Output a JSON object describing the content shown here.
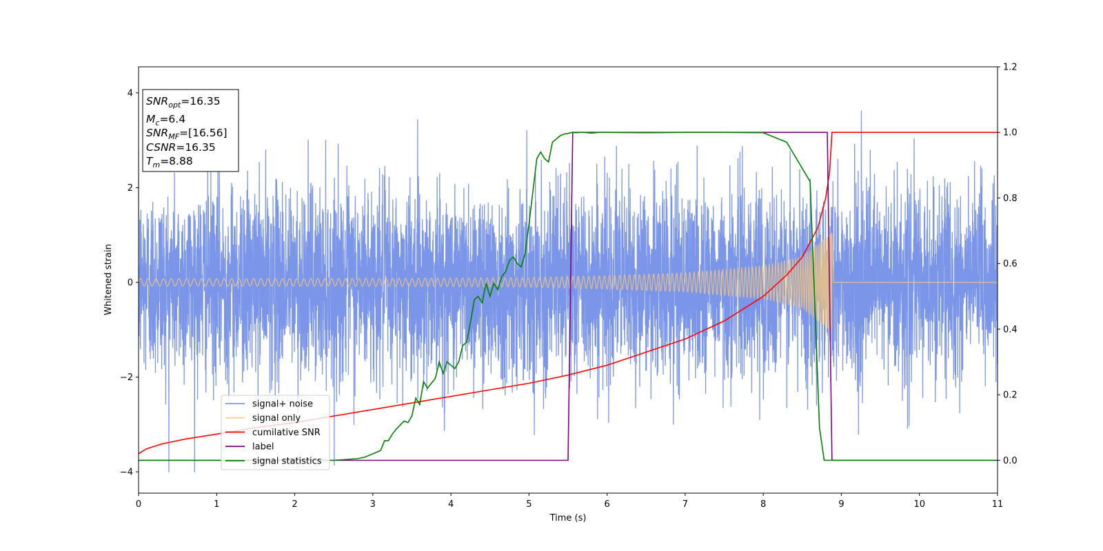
{
  "chart_data": {
    "type": "line",
    "xlabel": "Time (s)",
    "ylabel": "Whitened strain",
    "xlim": [
      0,
      11
    ],
    "ylim_left": [
      -4.45,
      4.55
    ],
    "ylim_right": [
      -0.1,
      1.2
    ],
    "x_ticks": [
      0,
      1,
      2,
      3,
      4,
      5,
      6,
      7,
      8,
      9,
      10,
      11
    ],
    "y_ticks_left": [
      -4,
      -2,
      0,
      2,
      4
    ],
    "y_tick_labels_left": [
      "−4",
      "−2",
      "0",
      "2",
      "4"
    ],
    "y_ticks_right": [
      0.0,
      0.2,
      0.4,
      0.6,
      0.8,
      1.0,
      1.2
    ],
    "y_tick_labels_right": [
      "0.0",
      "0.2",
      "0.4",
      "0.6",
      "0.8",
      "1.0",
      "1.2"
    ],
    "grid": false,
    "legend_position": "lower-left",
    "series": [
      {
        "name": "signal+ noise",
        "axis": "left",
        "color": "#5a7be3",
        "noise_sigma": 1.0,
        "max_value": 4.15,
        "min_value": -4.0
      },
      {
        "name": "signal only",
        "axis": "left",
        "color": "#f5c77a",
        "amplitude": [
          [
            0,
            0.08
          ],
          [
            2,
            0.08
          ],
          [
            4,
            0.09
          ],
          [
            5,
            0.1
          ],
          [
            6,
            0.14
          ],
          [
            7,
            0.2
          ],
          [
            8,
            0.35
          ],
          [
            8.5,
            0.55
          ],
          [
            8.8,
            0.95
          ],
          [
            8.88,
            1.05
          ],
          [
            8.9,
            0
          ]
        ],
        "merger_time": 8.88
      },
      {
        "name": "cumilative SNR",
        "axis": "right",
        "color": "#ff0000",
        "x": [
          0,
          0.1,
          0.3,
          0.6,
          1.0,
          1.5,
          2.0,
          2.5,
          3.0,
          3.5,
          4.0,
          4.5,
          5.0,
          5.5,
          6.0,
          6.5,
          7.0,
          7.5,
          8.0,
          8.3,
          8.5,
          8.7,
          8.8,
          8.85,
          8.88,
          9.0,
          11.0
        ],
        "y": [
          0.02,
          0.035,
          0.05,
          0.065,
          0.08,
          0.1,
          0.115,
          0.135,
          0.155,
          0.175,
          0.195,
          0.215,
          0.235,
          0.26,
          0.29,
          0.33,
          0.37,
          0.425,
          0.5,
          0.565,
          0.62,
          0.71,
          0.8,
          0.88,
          1.0,
          1.0,
          1.0
        ]
      },
      {
        "name": "label",
        "axis": "right",
        "color": "#800080",
        "x": [
          0,
          5.5,
          5.56,
          8.82,
          8.88,
          11
        ],
        "y": [
          0,
          0,
          1,
          1,
          0,
          0
        ]
      },
      {
        "name": "signal statistics",
        "axis": "right",
        "color": "#008000",
        "x": [
          0,
          1,
          2,
          2.5,
          2.8,
          2.9,
          3.0,
          3.1,
          3.15,
          3.2,
          3.25,
          3.3,
          3.4,
          3.45,
          3.5,
          3.55,
          3.6,
          3.65,
          3.7,
          3.75,
          3.8,
          3.85,
          3.9,
          3.95,
          4.0,
          4.05,
          4.1,
          4.15,
          4.2,
          4.25,
          4.3,
          4.35,
          4.4,
          4.45,
          4.5,
          4.55,
          4.6,
          4.65,
          4.7,
          4.75,
          4.8,
          4.85,
          4.9,
          4.95,
          5.0,
          5.05,
          5.1,
          5.15,
          5.2,
          5.25,
          5.3,
          5.35,
          5.4,
          5.45,
          5.5,
          5.55,
          5.6,
          5.65,
          5.7,
          5.8,
          5.9,
          6.0,
          6.5,
          7.0,
          7.5,
          8.0,
          8.3,
          8.6,
          8.72,
          8.78,
          8.82,
          8.85,
          8.9,
          9.0,
          11.0
        ],
        "y": [
          0,
          0,
          0,
          0,
          0.005,
          0.01,
          0.02,
          0.03,
          0.06,
          0.06,
          0.08,
          0.095,
          0.12,
          0.115,
          0.135,
          0.19,
          0.17,
          0.24,
          0.22,
          0.235,
          0.25,
          0.3,
          0.265,
          0.3,
          0.29,
          0.28,
          0.3,
          0.35,
          0.36,
          0.42,
          0.49,
          0.5,
          0.48,
          0.54,
          0.5,
          0.54,
          0.52,
          0.56,
          0.575,
          0.61,
          0.62,
          0.6,
          0.59,
          0.63,
          0.72,
          0.82,
          0.92,
          0.94,
          0.92,
          0.91,
          0.97,
          0.98,
          0.99,
          0.995,
          0.997,
          1.0,
          0.999,
          1.0,
          1.0,
          0.998,
          1.0,
          1.0,
          0.999,
          1.0,
          1.0,
          0.999,
          0.97,
          0.85,
          0.1,
          0.0,
          0.0,
          0.0,
          0.0,
          0.0,
          0.0
        ]
      }
    ],
    "info_box": {
      "lines": [
        {
          "sym": "SNR",
          "sub": "opt",
          "val": "=16.35"
        },
        {
          "sym": "M",
          "sub": "c",
          "val": "=6.4"
        },
        {
          "sym": "SNR",
          "sub": "MF",
          "val": "=[16.56]"
        },
        {
          "sym": "CSNR",
          "sub": "",
          "val": "=16.35"
        },
        {
          "sym": "T",
          "sub": "m",
          "val": "=8.88"
        }
      ]
    }
  }
}
